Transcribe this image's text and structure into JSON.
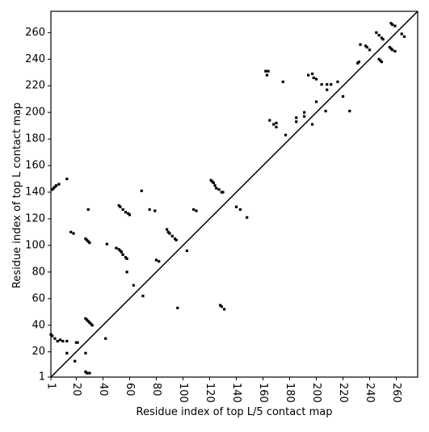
{
  "chart_data": {
    "type": "scatter",
    "x_label": "Residue index of top L/5 contact map",
    "y_label": "Residue index of top L contact map",
    "color": "#000000",
    "xlim": [
      1,
      276
    ],
    "ylim": [
      1,
      276
    ],
    "xticks": [
      1,
      20,
      40,
      60,
      80,
      100,
      120,
      140,
      160,
      180,
      200,
      220,
      240,
      260
    ],
    "yticks": [
      1,
      20,
      40,
      60,
      80,
      100,
      120,
      140,
      160,
      180,
      200,
      220,
      240,
      260
    ],
    "x": [
      2,
      3,
      4,
      5,
      7,
      13,
      16,
      18,
      27,
      28,
      29,
      30,
      29,
      43,
      52,
      53,
      55,
      57,
      59,
      60,
      69,
      75,
      79,
      50,
      52,
      53,
      54,
      55,
      57,
      58,
      58,
      63,
      70,
      80,
      82,
      88,
      89,
      90,
      92,
      94,
      95,
      96,
      103,
      108,
      110,
      121,
      122,
      123,
      124,
      125,
      127,
      129,
      130,
      128,
      129,
      131,
      140,
      143,
      148,
      27,
      28,
      29,
      30,
      31,
      32,
      27,
      13,
      19,
      20,
      21,
      1,
      2,
      4,
      6,
      8,
      10,
      13,
      42,
      27,
      28,
      30,
      162,
      164,
      163,
      175,
      165,
      168,
      170,
      170,
      177,
      185,
      185,
      191,
      191,
      194,
      197,
      198,
      200,
      200,
      197,
      204,
      208,
      211,
      216,
      208,
      207,
      220,
      225,
      231,
      232,
      233,
      237,
      238,
      240,
      245,
      247,
      249,
      250,
      247,
      248,
      249,
      255,
      256,
      257,
      259,
      256,
      257,
      259,
      264,
      266
    ],
    "values": [
      142,
      143,
      144,
      145,
      146,
      150,
      110,
      109,
      105,
      104,
      103,
      102,
      127,
      101,
      130,
      129,
      127,
      125,
      124,
      123,
      141,
      127,
      126,
      98,
      97,
      96,
      95,
      93,
      91,
      90,
      80,
      70,
      62,
      89,
      88,
      112,
      110,
      109,
      107,
      105,
      104,
      53,
      96,
      127,
      126,
      149,
      148,
      147,
      145,
      143,
      142,
      140,
      140,
      55,
      54,
      52,
      129,
      127,
      121,
      45,
      44,
      43,
      42,
      41,
      40,
      19,
      19,
      13,
      27,
      27,
      33,
      32,
      30,
      28,
      29,
      28,
      28,
      30,
      5,
      4,
      4,
      231,
      231,
      228,
      223,
      194,
      191,
      189,
      192,
      183,
      196,
      193,
      197,
      200,
      228,
      229,
      226,
      225,
      208,
      191,
      221,
      221,
      221,
      223,
      217,
      201,
      212,
      201,
      237,
      238,
      251,
      250,
      249,
      247,
      260,
      258,
      256,
      255,
      240,
      239,
      238,
      249,
      248,
      247,
      246,
      267,
      266,
      265,
      259,
      257
    ]
  }
}
